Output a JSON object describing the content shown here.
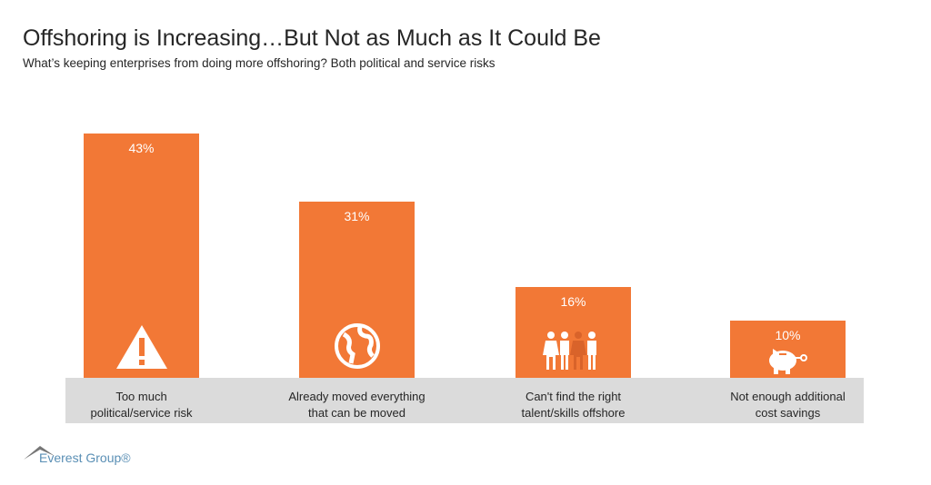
{
  "title": "Offshoring is Increasing…But Not as Much as It Could Be",
  "subtitle": "What’s keeping enterprises from doing more offshoring? Both political and service risks",
  "logo": "Everest Group®",
  "colors": {
    "bar": "#F27836",
    "band": "#DBDBDB",
    "logo": "#5A8FB5"
  },
  "chart_data": {
    "type": "bar",
    "categories": [
      "Too much political/service risk",
      "Already moved everything that can be moved",
      "Can't find the right talent/skills offshore",
      "Not enough additional cost savings"
    ],
    "category_lines": [
      [
        "Too much",
        "political/service risk"
      ],
      [
        "Already moved everything",
        "that can be moved"
      ],
      [
        "Can't find the right",
        "talent/skills offshore"
      ],
      [
        "Not enough additional",
        "cost savings"
      ]
    ],
    "values": [
      43,
      31,
      16,
      10
    ],
    "data_labels": [
      "43%",
      "31%",
      "16%",
      "10%"
    ],
    "icons": [
      "warning-icon",
      "globe-icon",
      "people-icon",
      "piggy-bank-icon"
    ],
    "unit": "%",
    "ylim": [
      0,
      43
    ],
    "grid": false
  }
}
